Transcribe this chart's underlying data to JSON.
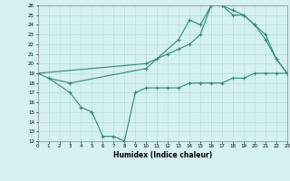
{
  "line1_x": [
    0,
    1,
    3,
    10,
    13,
    14,
    15,
    16,
    17,
    18,
    19,
    20,
    21,
    22,
    23
  ],
  "line1_y": [
    19,
    18.5,
    18.0,
    19.5,
    22.5,
    24.5,
    24.0,
    26.0,
    26.0,
    25.0,
    25.0,
    24.0,
    22.5,
    20.5,
    19.0
  ],
  "line2_x": [
    0,
    10,
    11,
    12,
    13,
    14,
    15,
    16,
    17,
    18,
    19,
    20,
    21,
    22,
    23
  ],
  "line2_y": [
    19,
    20.0,
    20.5,
    21.0,
    21.5,
    22.0,
    23.0,
    26.0,
    26.0,
    25.5,
    25.0,
    24.0,
    23.0,
    20.5,
    19.0
  ],
  "line3_x": [
    1,
    3,
    4,
    5,
    6,
    7,
    8,
    9,
    10,
    11,
    12,
    13,
    14,
    15,
    16,
    17,
    18,
    19,
    20,
    21,
    22,
    23
  ],
  "line3_y": [
    18.5,
    17.0,
    15.5,
    15.0,
    12.5,
    12.5,
    12.0,
    17.0,
    17.5,
    17.5,
    17.5,
    17.5,
    18.0,
    18.0,
    18.0,
    18.0,
    18.5,
    18.5,
    19.0,
    19.0,
    19.0,
    19.0
  ],
  "color": "#2e8b6e",
  "bg_color": "#d4f0f0",
  "grid_color": "#b0d8d8",
  "xlim": [
    0,
    23
  ],
  "ylim": [
    12,
    26
  ],
  "yticks": [
    12,
    13,
    14,
    15,
    16,
    17,
    18,
    19,
    20,
    21,
    22,
    23,
    24,
    25,
    26
  ],
  "xticks": [
    0,
    1,
    2,
    3,
    4,
    5,
    6,
    7,
    8,
    9,
    10,
    11,
    12,
    13,
    14,
    15,
    16,
    17,
    18,
    19,
    20,
    21,
    22,
    23
  ],
  "xlabel": "Humidex (Indice chaleur)",
  "marker": "+",
  "markersize": 3.5,
  "linewidth": 0.8
}
